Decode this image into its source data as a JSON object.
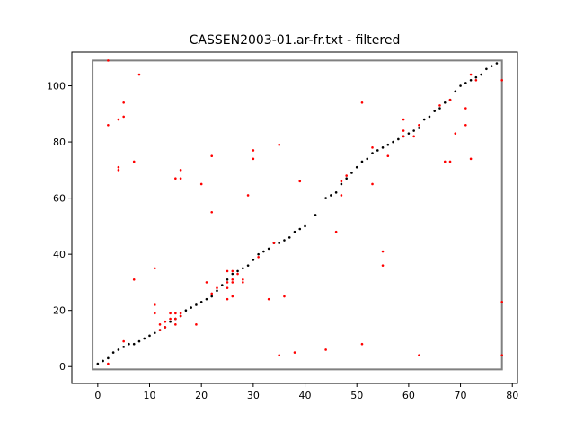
{
  "chart_data": {
    "type": "scatter",
    "title": "CASSEN2003-01.ar-fr.txt - filtered",
    "xlabel": "",
    "ylabel": "",
    "xlim": [
      -5,
      81
    ],
    "ylim": [
      -6,
      112
    ],
    "xticks": [
      0,
      10,
      20,
      30,
      40,
      50,
      60,
      70,
      80
    ],
    "yticks": [
      0,
      20,
      40,
      60,
      80,
      100
    ],
    "grid": false,
    "legend": "none",
    "colors": {
      "frame": "#808080",
      "alignment": "#000000",
      "candidates": "#ff0000"
    },
    "filter_box": {
      "x": [
        -1,
        78
      ],
      "y": [
        -1,
        109
      ]
    },
    "series": [
      {
        "values": [
          [
            0,
            1
          ],
          [
            1,
            2
          ],
          [
            2,
            3
          ],
          [
            3,
            5
          ],
          [
            4,
            6
          ],
          [
            5,
            7
          ],
          [
            6,
            8
          ],
          [
            7,
            8
          ],
          [
            8,
            9
          ],
          [
            9,
            10
          ],
          [
            10,
            11
          ],
          [
            11,
            12
          ],
          [
            12,
            13
          ],
          [
            13,
            14
          ],
          [
            14,
            16
          ],
          [
            15,
            17
          ],
          [
            16,
            18
          ],
          [
            17,
            20
          ],
          [
            18,
            21
          ],
          [
            19,
            22
          ],
          [
            20,
            23
          ],
          [
            21,
            24
          ],
          [
            22,
            25
          ],
          [
            23,
            27
          ],
          [
            24,
            29
          ],
          [
            25,
            31
          ],
          [
            26,
            33
          ],
          [
            27,
            34
          ],
          [
            28,
            35
          ],
          [
            29,
            36
          ],
          [
            30,
            38
          ],
          [
            31,
            40
          ],
          [
            32,
            41
          ],
          [
            33,
            42
          ],
          [
            34,
            44
          ],
          [
            35,
            44
          ],
          [
            36,
            45
          ],
          [
            37,
            46
          ],
          [
            38,
            48
          ],
          [
            39,
            49
          ],
          [
            40,
            50
          ],
          [
            42,
            54
          ],
          [
            44,
            60
          ],
          [
            45,
            61
          ],
          [
            46,
            62
          ],
          [
            47,
            65
          ],
          [
            48,
            67
          ],
          [
            49,
            69
          ],
          [
            50,
            71
          ],
          [
            51,
            73
          ],
          [
            52,
            74
          ],
          [
            53,
            76
          ],
          [
            54,
            77
          ],
          [
            55,
            78
          ],
          [
            56,
            79
          ],
          [
            57,
            80
          ],
          [
            58,
            81
          ],
          [
            59,
            82
          ],
          [
            60,
            83
          ],
          [
            61,
            84
          ],
          [
            62,
            85
          ],
          [
            63,
            88
          ],
          [
            64,
            89
          ],
          [
            65,
            91
          ],
          [
            66,
            92
          ],
          [
            67,
            94
          ],
          [
            68,
            95
          ],
          [
            69,
            98
          ],
          [
            70,
            100
          ],
          [
            71,
            101
          ],
          [
            72,
            102
          ],
          [
            73,
            103
          ],
          [
            74,
            104
          ],
          [
            75,
            106
          ],
          [
            76,
            107
          ],
          [
            77,
            108
          ]
        ]
      },
      {
        "values": [
          [
            2,
            1
          ],
          [
            2,
            86
          ],
          [
            2,
            109
          ],
          [
            4,
            70
          ],
          [
            4,
            71
          ],
          [
            4,
            88
          ],
          [
            5,
            89
          ],
          [
            5,
            94
          ],
          [
            5,
            9
          ],
          [
            7,
            31
          ],
          [
            7,
            73
          ],
          [
            8,
            104
          ],
          [
            11,
            35
          ],
          [
            11,
            22
          ],
          [
            11,
            19
          ],
          [
            12,
            13
          ],
          [
            12,
            15
          ],
          [
            13,
            14
          ],
          [
            13,
            16
          ],
          [
            14,
            17
          ],
          [
            14,
            19
          ],
          [
            15,
            15
          ],
          [
            15,
            17
          ],
          [
            15,
            19
          ],
          [
            16,
            18
          ],
          [
            16,
            19
          ],
          [
            16,
            67
          ],
          [
            16,
            70
          ],
          [
            15,
            67
          ],
          [
            19,
            15
          ],
          [
            20,
            65
          ],
          [
            21,
            30
          ],
          [
            22,
            26
          ],
          [
            22,
            55
          ],
          [
            22,
            75
          ],
          [
            23,
            28
          ],
          [
            25,
            24
          ],
          [
            25,
            28
          ],
          [
            25,
            30
          ],
          [
            25,
            34
          ],
          [
            26,
            25
          ],
          [
            26,
            30
          ],
          [
            26,
            31
          ],
          [
            26,
            34
          ],
          [
            27,
            33
          ],
          [
            28,
            30
          ],
          [
            28,
            31
          ],
          [
            29,
            61
          ],
          [
            30,
            74
          ],
          [
            30,
            77
          ],
          [
            31,
            39
          ],
          [
            33,
            24
          ],
          [
            34,
            44
          ],
          [
            35,
            4
          ],
          [
            35,
            79
          ],
          [
            36,
            25
          ],
          [
            38,
            5
          ],
          [
            39,
            66
          ],
          [
            44,
            6
          ],
          [
            46,
            48
          ],
          [
            47,
            61
          ],
          [
            47,
            66
          ],
          [
            48,
            68
          ],
          [
            51,
            8
          ],
          [
            51,
            94
          ],
          [
            53,
            65
          ],
          [
            53,
            78
          ],
          [
            55,
            36
          ],
          [
            55,
            41
          ],
          [
            56,
            75
          ],
          [
            59,
            82
          ],
          [
            59,
            84
          ],
          [
            59,
            88
          ],
          [
            61,
            82
          ],
          [
            62,
            4
          ],
          [
            62,
            86
          ],
          [
            66,
            93
          ],
          [
            67,
            73
          ],
          [
            68,
            73
          ],
          [
            68,
            95
          ],
          [
            69,
            83
          ],
          [
            71,
            86
          ],
          [
            71,
            92
          ],
          [
            72,
            74
          ],
          [
            72,
            104
          ],
          [
            73,
            102
          ],
          [
            78,
            102
          ],
          [
            78,
            23
          ],
          [
            78,
            4
          ]
        ]
      }
    ]
  }
}
